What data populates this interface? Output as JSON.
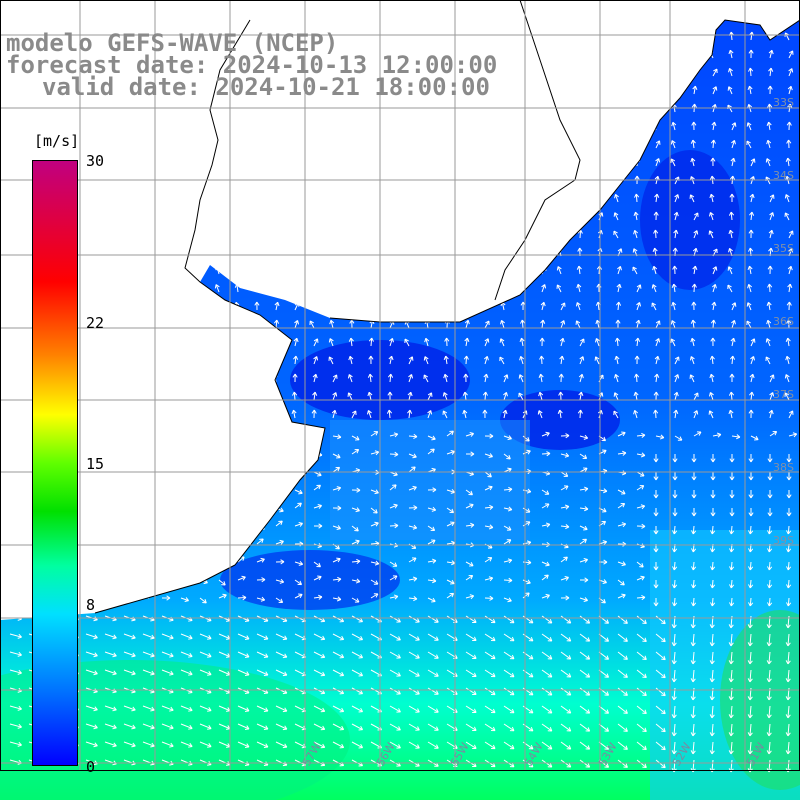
{
  "title": {
    "line1": "modelo GEFS-WAVE (NCEP)",
    "line2": "forecast date: 2024-10-13 12:00:00",
    "line3": "valid date: 2024-10-21 18:00:00"
  },
  "colorbar": {
    "unit": "[m/s]",
    "min": 0,
    "max": 30,
    "ticks": [
      "30",
      "22",
      "15",
      "8",
      "0"
    ],
    "tick_values": [
      30,
      22,
      15,
      8,
      0
    ],
    "colors": [
      "#0000ff",
      "#00a0ff",
      "#00ffff",
      "#00ff60",
      "#00c000",
      "#c0ff00",
      "#ffff00",
      "#ff8000",
      "#ff0000",
      "#c00070"
    ]
  },
  "axes": {
    "lon_labels": [
      "57W",
      "56W",
      "55W",
      "54W",
      "53W",
      "52W",
      "51W"
    ],
    "lat_labels": [
      "33S",
      "34S",
      "35S",
      "36S",
      "37S",
      "38S",
      "39S"
    ]
  },
  "colors": {
    "land": "#ffffff",
    "grid": "#9a9a9a",
    "coast": "#000000",
    "arrow": "#ffffff",
    "title": "#8a8a8a"
  }
}
